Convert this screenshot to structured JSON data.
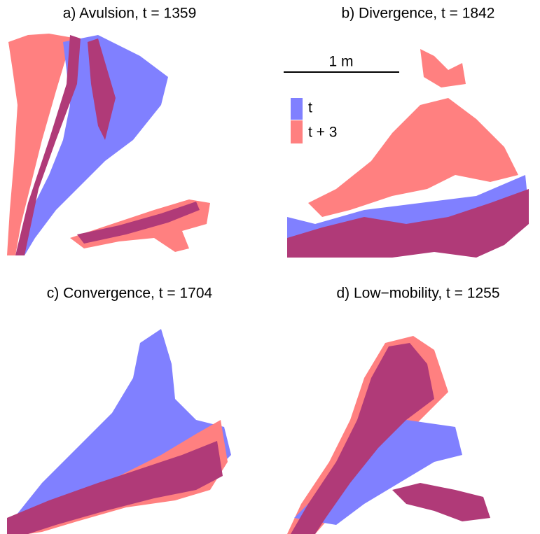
{
  "panels": [
    {
      "title": "a) Avulsion, t = 1359"
    },
    {
      "title": "b) Divergence, t = 1842"
    },
    {
      "title": "c) Convergence, t = 1704"
    },
    {
      "title": "d) Low−mobility, t = 1255"
    }
  ],
  "scale_bar": {
    "label": "1 m"
  },
  "legend": {
    "items": [
      {
        "label": "t",
        "color": "#8080ff"
      },
      {
        "label": "t + 3",
        "color": "#ff8080"
      }
    ]
  }
}
